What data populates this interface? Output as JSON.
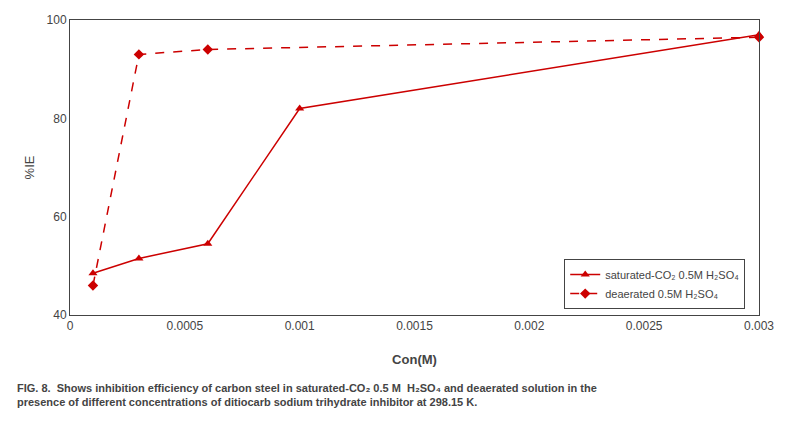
{
  "chart_data": {
    "type": "line",
    "x_label": "Con(M)",
    "y_label": "%IE",
    "series": [
      {
        "name": "saturated-CO₂ 0.5M H₂SO₄",
        "color": "#cc0000",
        "marker": "triangle",
        "line_style": "solid",
        "x": [
          0.0001,
          0.0003,
          0.0006,
          0.001,
          0.003
        ],
        "values": [
          48.5,
          51.5,
          54.5,
          82.0,
          97.0
        ]
      },
      {
        "name": "deaerated 0.5M H₂SO₄",
        "color": "#cc0000",
        "marker": "diamond",
        "line_style": "dashed",
        "x": [
          0.0001,
          0.0003,
          0.0006,
          0.003
        ],
        "values": [
          46.0,
          93.0,
          94.0,
          96.5
        ]
      }
    ],
    "xlim": [
      0,
      0.003
    ],
    "xticks": [
      0,
      0.0005,
      0.001,
      0.0015,
      0.002,
      0.0025,
      0.003
    ],
    "ylim": [
      40,
      100
    ],
    "yticks": [
      40,
      60,
      80,
      100
    ],
    "grid": false,
    "legend": "lower right",
    "annotations": [
      "FIG. 8.",
      "  Shows inhibition efficiency of carbon steel in saturated-CO₂ 0.5 M  H₂SO₄ and deaerated solution in the\npresence of different concentrations of ditiocarb sodium trihydrate inhibitor at 298.15 K."
    ]
  }
}
